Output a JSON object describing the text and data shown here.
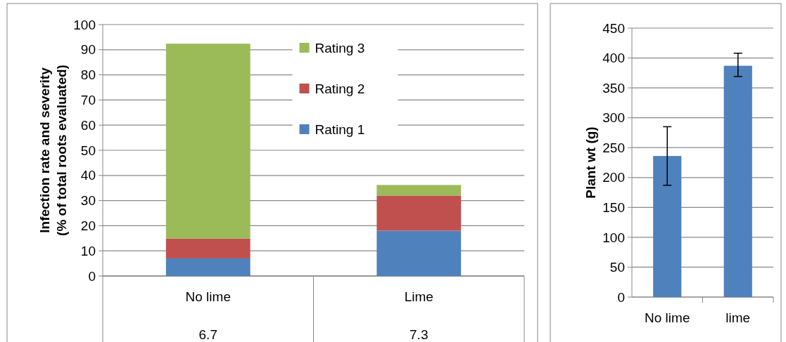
{
  "chart_data": [
    {
      "type": "bar",
      "stacked": true,
      "categories": [
        "No lime",
        "Lime"
      ],
      "ylabel": "Infection rate and severity\n(% of total roots evaluated)",
      "ylim": [
        0,
        100
      ],
      "yticks": [
        0,
        10,
        20,
        30,
        40,
        50,
        60,
        70,
        80,
        90,
        100
      ],
      "grid": "y",
      "legend": "top",
      "series": [
        {
          "name": "Rating 1",
          "color": "#4f81bd",
          "values": [
            7.0,
            18.0
          ]
        },
        {
          "name": "Rating 2",
          "color": "#c0504d",
          "values": [
            7.9,
            14.0
          ]
        },
        {
          "name": "Rating 3",
          "color": "#9bbb59",
          "values": [
            77.5,
            4.2
          ]
        }
      ],
      "annotations": [
        "6.7",
        "7.3"
      ]
    },
    {
      "type": "bar",
      "categories": [
        "No lime",
        "lime"
      ],
      "ylabel": "Plant wt (g)",
      "ylim": [
        0,
        450
      ],
      "yticks": [
        0,
        50,
        100,
        150,
        200,
        250,
        300,
        350,
        400,
        450
      ],
      "grid": "y",
      "series": [
        {
          "color": "#4f81bd",
          "values": [
            236,
            387
          ],
          "errors": [
            [
              187,
              285
            ],
            [
              369,
              408
            ]
          ]
        }
      ]
    }
  ]
}
